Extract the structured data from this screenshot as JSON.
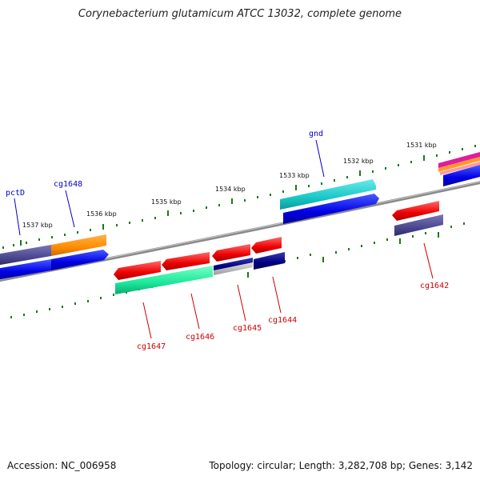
{
  "title": "Corynebacterium glutamicum ATCC 13032, complete genome",
  "footer": {
    "accession": "Accession: NC_006958",
    "summary": "Topology: circular; Length: 3,282,708 bp; Genes: 3,142"
  },
  "scale_labels": [
    "1531 kbp",
    "1532 kbp",
    "1533 kbp",
    "1534 kbp",
    "1535 kbp",
    "1536 kbp",
    "1537 kbp"
  ],
  "gene_labels": {
    "plus": [
      "gnd",
      "cg1648",
      "pctD"
    ],
    "minus": [
      "cg1642",
      "cg1644",
      "cg1645",
      "cg1646",
      "cg1647"
    ]
  },
  "colors": {
    "backbone": "#8a8a8a",
    "plus_label": "#0000cc",
    "minus_label": "#cc0000",
    "ticks": "#1a7a1a",
    "cds_forward": "#0000ee",
    "cds_reverse": "#ee0000"
  }
}
